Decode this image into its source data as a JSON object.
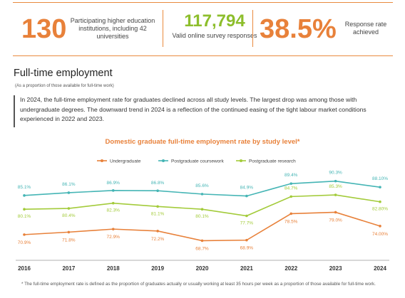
{
  "stats": [
    {
      "value": "130",
      "label": "Participating higher education institutions, including 42 universities"
    },
    {
      "value": "117,794",
      "label": "Valid online survey responses"
    },
    {
      "value": "38.5%",
      "label": "Response rate achieved"
    }
  ],
  "colors": {
    "orange": "#e8813a",
    "green": "#8dbe2c",
    "teal": "#45b5b5"
  },
  "section": {
    "title": "Full-time employment",
    "subtitle": "(As a proportion of those available for full-time work)",
    "paragraph": "In 2024, the full-time employment rate for graduates declined across all study levels. The largest drop was among those with undergraduate degrees. The downward trend in 2024 is a reflection of the continued easing of the tight labour market conditions experienced in 2022 and 2023."
  },
  "chart_data": {
    "type": "line",
    "title": "Domestic graduate full-time employment rate by study level*",
    "x": [
      "2016",
      "2017",
      "2018",
      "2019",
      "2020",
      "2021",
      "2022",
      "2023",
      "2024"
    ],
    "legend_position": "top",
    "series": [
      {
        "name": "Undergraduate",
        "color": "#e8813a",
        "values": [
          70.9,
          71.8,
          72.9,
          72.2,
          68.7,
          68.9,
          78.5,
          79.0,
          74.0
        ],
        "labels": [
          "70.9%",
          "71.8%",
          "72.9%",
          "72.2%",
          "68.7%",
          "68.9%",
          "78.5%",
          "79.0%",
          "74.00%"
        ]
      },
      {
        "name": "Postgraduate coursework",
        "color": "#45b5b5",
        "values": [
          85.1,
          86.1,
          86.9,
          86.8,
          85.6,
          84.9,
          89.4,
          90.3,
          88.1
        ],
        "labels": [
          "85.1%",
          "86.1%",
          "86.9%",
          "86.8%",
          "85.6%",
          "84.9%",
          "89.4%",
          "90.3%",
          "88.10%"
        ]
      },
      {
        "name": "Postgraduate research",
        "color": "#a3cb3a",
        "values": [
          80.1,
          80.4,
          82.3,
          81.1,
          80.1,
          77.7,
          84.7,
          85.3,
          82.8
        ],
        "labels": [
          "80.1%",
          "80.4%",
          "82.3%",
          "81.1%",
          "80.1%",
          "77.7%",
          "84.7%",
          "85.3%",
          "82.80%"
        ]
      }
    ]
  },
  "footnote": "* The full-time employment rate is defined as the proportion of graduates actually or usually working at least 35 hours per week as a proportion of those available for full-time work."
}
